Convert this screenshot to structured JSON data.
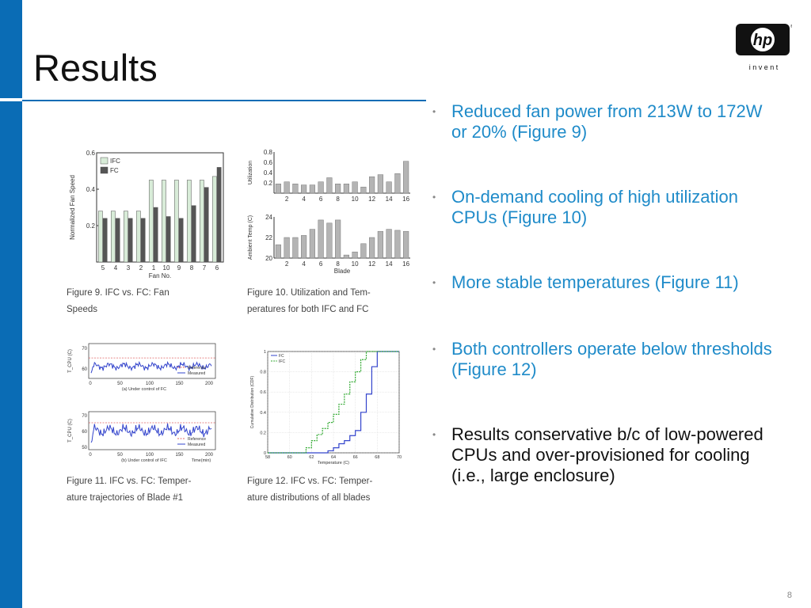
{
  "slide": {
    "title": "Results",
    "page_number": "8",
    "logo_text": "hp",
    "logo_tagline": "i n v e n t"
  },
  "bullets": [
    {
      "text": "Reduced fan power from 213W to 172W or 20% (Figure 9)",
      "color": "#1f8bc9"
    },
    {
      "text": "On-demand cooling of high utilization CPUs (Figure 10)",
      "color": "#1f8bc9"
    },
    {
      "text": "More stable temperatures (Figure 11)",
      "color": "#1f8bc9"
    },
    {
      "text": "Both controllers operate below thresholds (Figure 12)",
      "color": "#1f8bc9"
    },
    {
      "text": "Results conservative b/c of low-powered CPUs and over-provisioned for cooling (i.e., large enclosure)",
      "color": "#111111"
    }
  ],
  "captions": {
    "fig9_line1": "Figure 9.   IFC   vs.    FC:   Fan",
    "fig9_line2": "Speeds",
    "fig10_line1": "Figure 10.   Utilization and Tem-",
    "fig10_line2": "peratures for both IFC and FC",
    "fig11_line1": "Figure 11.    IFC vs. FC: Temper-",
    "fig11_line2": "ature trajectories of Blade #1",
    "fig12_line1": "Figure 12.    IFC vs. FC: Temper-",
    "fig12_line2": "ature distributions of all blades"
  },
  "chart_data": [
    {
      "type": "bar",
      "figure": "Figure 9",
      "categories": [
        "5",
        "4",
        "3",
        "2",
        "1",
        "10",
        "9",
        "8",
        "7",
        "6"
      ],
      "series": [
        {
          "name": "IFC",
          "values": [
            0.28,
            0.28,
            0.28,
            0.28,
            0.45,
            0.45,
            0.45,
            0.45,
            0.45,
            0.47
          ],
          "color": "#d8ecd8"
        },
        {
          "name": "FC",
          "values": [
            0.24,
            0.24,
            0.24,
            0.24,
            0.3,
            0.25,
            0.24,
            0.31,
            0.41,
            0.52
          ],
          "color": "#555555"
        }
      ],
      "xlabel": "Fan No.",
      "ylabel": "Normalized Fan Speed",
      "ylim": [
        0,
        0.6
      ],
      "yticks": [
        "0.2",
        "0.4",
        "0.6"
      ],
      "legend": "top-left"
    },
    {
      "type": "bar",
      "figure": "Figure 10 (top)",
      "categories": [
        "1",
        "2",
        "3",
        "4",
        "5",
        "6",
        "7",
        "8",
        "9",
        "10",
        "11",
        "12",
        "13",
        "14",
        "15",
        "16"
      ],
      "values": [
        0.18,
        0.22,
        0.18,
        0.16,
        0.16,
        0.22,
        0.3,
        0.18,
        0.18,
        0.22,
        0.12,
        0.32,
        0.36,
        0.22,
        0.38,
        0.62
      ],
      "xticks": [
        "2",
        "4",
        "6",
        "8",
        "10",
        "12",
        "14",
        "16"
      ],
      "ylabel": "Utilization",
      "ylim": [
        0,
        0.8
      ],
      "yticks": [
        "0.2",
        "0.4",
        "0.6",
        "0.8"
      ],
      "color": "#b4b4b4"
    },
    {
      "type": "bar",
      "figure": "Figure 10 (bottom)",
      "categories": [
        "1",
        "2",
        "3",
        "4",
        "5",
        "6",
        "7",
        "8",
        "9",
        "10",
        "11",
        "12",
        "13",
        "14",
        "15",
        "16"
      ],
      "values": [
        21.3,
        22.0,
        22.0,
        22.2,
        22.8,
        23.7,
        23.4,
        23.7,
        20.3,
        20.6,
        21.4,
        22.0,
        22.6,
        22.8,
        22.7,
        22.6
      ],
      "xticks": [
        "2",
        "4",
        "6",
        "8",
        "10",
        "12",
        "14",
        "16"
      ],
      "xlabel": "Blade",
      "ylabel": "Ambient Temp (C)",
      "ylim": [
        20,
        24
      ],
      "yticks": [
        "20",
        "22",
        "24"
      ],
      "color": "#b4b4b4"
    },
    {
      "type": "line",
      "figure": "Figure 11 (a)",
      "subtitle": "(a) Under control of FC",
      "ylabel": "T_CPU (C)",
      "xticks": [
        "0",
        "50",
        "100",
        "150",
        "200"
      ],
      "yticks": [
        "70",
        "60"
      ],
      "series": [
        {
          "name": "Reference",
          "y": 65,
          "color": "#e06666"
        },
        {
          "name": "Measured",
          "y_approx": 61,
          "color": "#3344cc"
        }
      ]
    },
    {
      "type": "line",
      "figure": "Figure 11 (b)",
      "subtitle": "(b) Under control of IFC",
      "ylabel": "T_CPU (C)",
      "xlabel": "Time(min)",
      "xticks": [
        "0",
        "50",
        "100",
        "150",
        "200"
      ],
      "yticks": [
        "70",
        "60",
        "50"
      ],
      "series": [
        {
          "name": "Reference",
          "y": 65,
          "color": "#e06666"
        },
        {
          "name": "Measured",
          "y_approx": 60,
          "color": "#3344cc"
        }
      ]
    },
    {
      "type": "line",
      "figure": "Figure 12",
      "xlabel": "Temperature (C)",
      "ylabel": "Cumulative Distribution (CDF)",
      "xlim": [
        58,
        70
      ],
      "ylim": [
        0,
        1
      ],
      "xticks": [
        "58",
        "60",
        "62",
        "64",
        "66",
        "68",
        "70"
      ],
      "yticks": [
        "0",
        "0.2",
        "0.4",
        "0.6",
        "0.8",
        "1"
      ],
      "series": [
        {
          "name": "FC",
          "color": "#3344cc",
          "x": [
            58,
            63,
            63.5,
            64,
            64.5,
            65,
            65.5,
            66,
            66.5,
            67,
            67.5,
            68,
            70
          ],
          "y": [
            0,
            0,
            0.02,
            0.05,
            0.09,
            0.12,
            0.17,
            0.22,
            0.4,
            0.58,
            0.85,
            1.0,
            1.0
          ]
        },
        {
          "name": "IFC",
          "color": "#33aa33",
          "x": [
            58,
            61,
            61.5,
            62,
            62.5,
            63,
            63.5,
            64,
            64.5,
            65,
            65.5,
            66,
            66.5,
            67,
            70
          ],
          "y": [
            0,
            0,
            0.05,
            0.12,
            0.18,
            0.24,
            0.3,
            0.38,
            0.48,
            0.58,
            0.7,
            0.8,
            0.92,
            1.0,
            1.0
          ]
        }
      ],
      "legend": "top-left"
    }
  ]
}
